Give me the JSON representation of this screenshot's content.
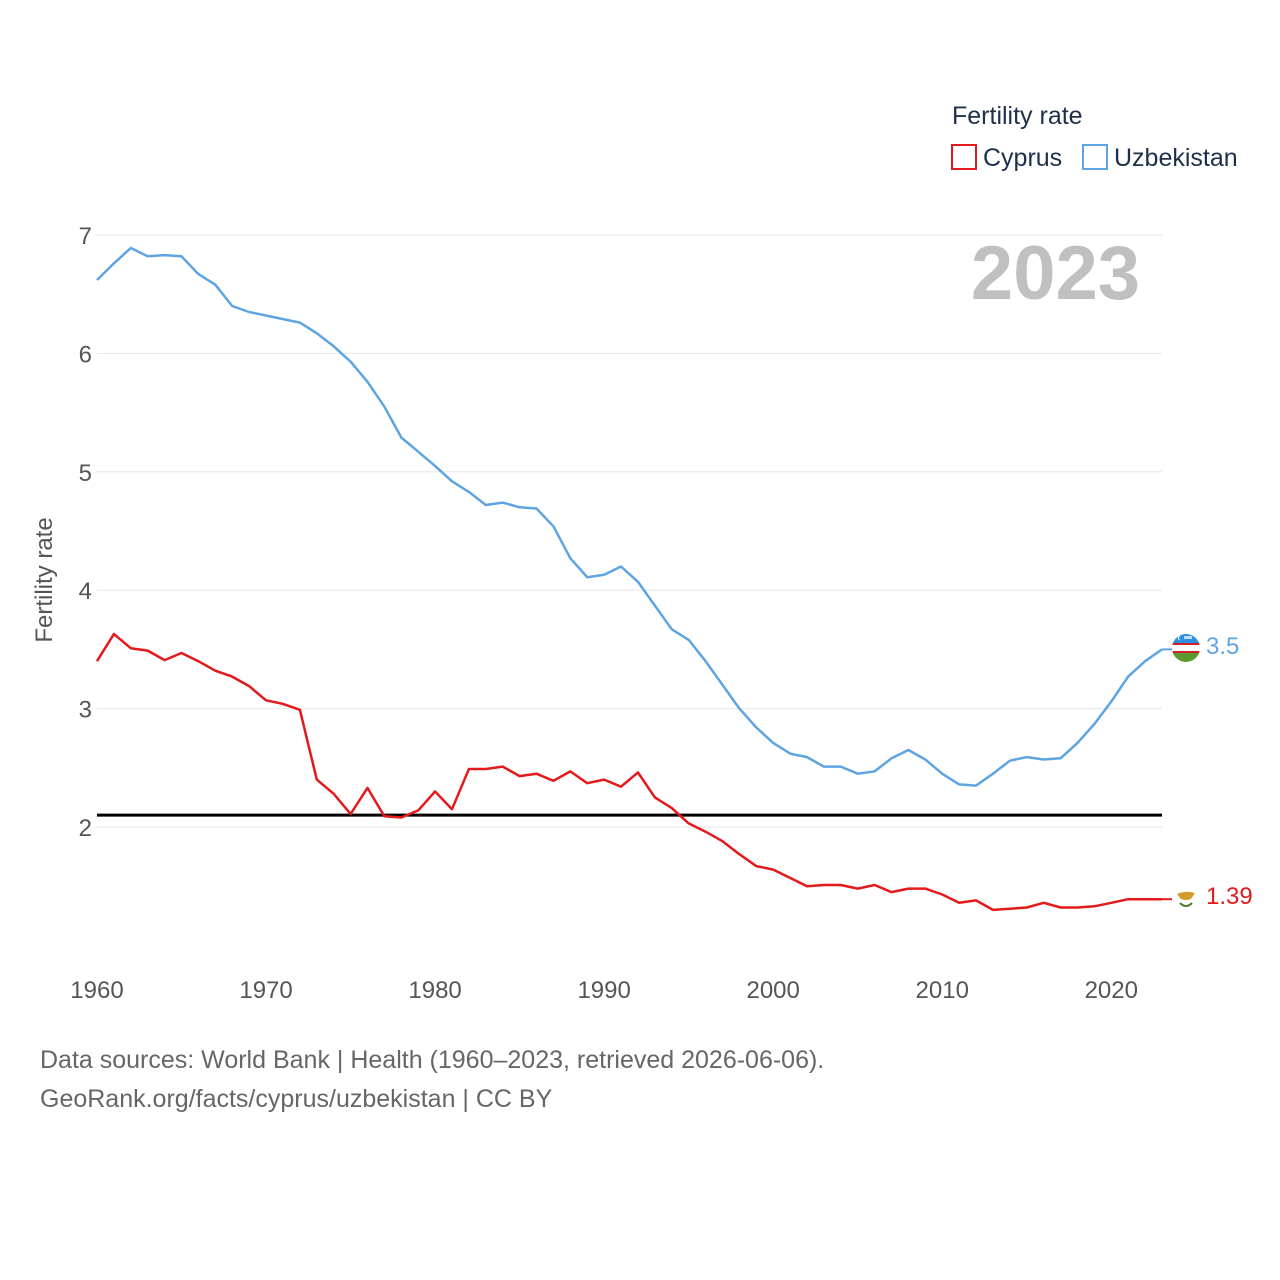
{
  "chart_data": {
    "type": "line",
    "ylabel": "Fertility rate",
    "xlim": [
      1960,
      2023
    ],
    "ylim": [
      0.8,
      7.3
    ],
    "x_ticks": [
      1960,
      1970,
      1980,
      1990,
      2000,
      2010,
      2020
    ],
    "y_ticks": [
      2,
      3,
      4,
      5,
      6,
      7
    ],
    "current_year": "2023",
    "reference_line": {
      "value": 2.1,
      "color": "#000000"
    },
    "legend": {
      "title": "Fertility rate",
      "placement": "top-right"
    },
    "x": [
      1960,
      1961,
      1962,
      1963,
      1964,
      1965,
      1966,
      1967,
      1968,
      1969,
      1970,
      1971,
      1972,
      1973,
      1974,
      1975,
      1976,
      1977,
      1978,
      1979,
      1980,
      1981,
      1982,
      1983,
      1984,
      1985,
      1986,
      1987,
      1988,
      1989,
      1990,
      1991,
      1992,
      1993,
      1994,
      1995,
      1996,
      1997,
      1998,
      1999,
      2000,
      2001,
      2002,
      2003,
      2004,
      2005,
      2006,
      2007,
      2008,
      2009,
      2010,
      2011,
      2012,
      2013,
      2014,
      2015,
      2016,
      2017,
      2018,
      2019,
      2020,
      2021,
      2022,
      2023
    ],
    "series": [
      {
        "name": "Cyprus",
        "color": "#e3191c",
        "end_label": "1.39",
        "flag": "cyprus-flag-icon",
        "values": [
          3.4,
          3.63,
          3.51,
          3.49,
          3.41,
          3.47,
          3.4,
          3.32,
          3.27,
          3.19,
          3.07,
          3.04,
          2.99,
          2.4,
          2.28,
          2.11,
          2.33,
          2.09,
          2.08,
          2.14,
          2.3,
          2.15,
          2.49,
          2.49,
          2.51,
          2.43,
          2.45,
          2.39,
          2.47,
          2.37,
          2.4,
          2.34,
          2.46,
          2.25,
          2.16,
          2.03,
          1.96,
          1.88,
          1.77,
          1.67,
          1.64,
          1.57,
          1.5,
          1.51,
          1.51,
          1.48,
          1.51,
          1.45,
          1.48,
          1.48,
          1.43,
          1.36,
          1.38,
          1.3,
          1.31,
          1.32,
          1.36,
          1.32,
          1.32,
          1.33,
          1.36,
          1.39,
          1.39,
          1.39
        ]
      },
      {
        "name": "Uzbekistan",
        "color": "#5fa4e2",
        "end_label": "3.5",
        "flag": "uzbekistan-flag-icon",
        "values": [
          6.62,
          6.76,
          6.89,
          6.82,
          6.83,
          6.82,
          6.67,
          6.58,
          6.4,
          6.35,
          6.32,
          6.29,
          6.26,
          6.17,
          6.06,
          5.93,
          5.76,
          5.55,
          5.29,
          5.17,
          5.05,
          4.92,
          4.83,
          4.72,
          4.74,
          4.7,
          4.69,
          4.54,
          4.27,
          4.11,
          4.13,
          4.2,
          4.07,
          3.87,
          3.67,
          3.58,
          3.4,
          3.2,
          3.0,
          2.84,
          2.71,
          2.62,
          2.59,
          2.51,
          2.51,
          2.45,
          2.47,
          2.58,
          2.65,
          2.57,
          2.45,
          2.36,
          2.35,
          2.45,
          2.56,
          2.59,
          2.57,
          2.58,
          2.71,
          2.87,
          3.06,
          3.27,
          3.4,
          3.5
        ]
      }
    ]
  },
  "footer": {
    "line1": "Data sources: World Bank | Health (1960–2023, retrieved 2026-06-06).",
    "line2": "GeoRank.org/facts/cyprus/uzbekistan | CC BY"
  }
}
